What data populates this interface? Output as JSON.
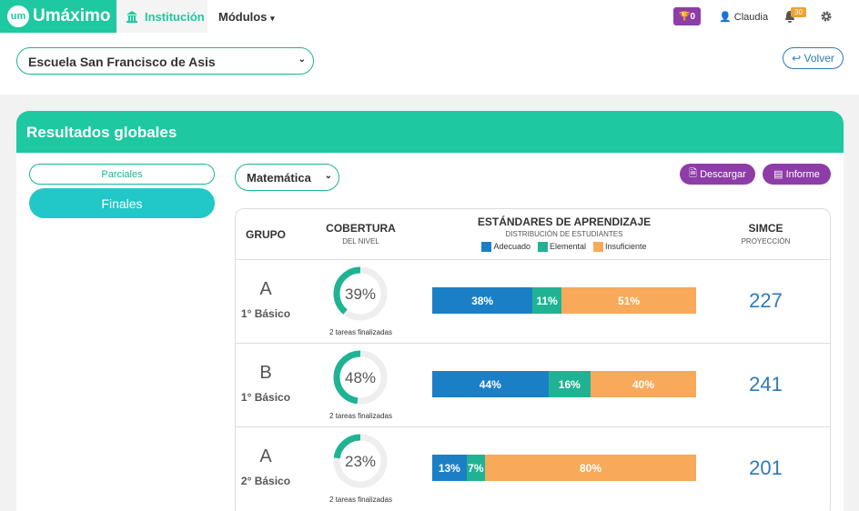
{
  "nav": {
    "brand": "Umáximo",
    "logo": "um",
    "tabs": [
      "Institución",
      "Módulos"
    ],
    "trophies": "0",
    "user": "Claudia",
    "notifications": "30"
  },
  "school_select": "Escuela San Francisco de Asis",
  "back_button": "Volver",
  "card": {
    "title": "Resultados globales",
    "tabs": [
      "Parciales",
      "Finales"
    ],
    "subject": "Matemática",
    "buttons": [
      "Descargar",
      "Informe"
    ]
  },
  "table": {
    "headers": {
      "group": "GRUPO",
      "coverage": "COBERTURA",
      "coverage_sub": "DEL NIVEL",
      "standards": "ESTÁNDARES DE APRENDIZAJE",
      "standards_sub": "DISTRIBUCIÓN DE ESTUDIANTES",
      "simce": "SIMCE",
      "simce_sub": "PROYECCIÓN"
    },
    "legend": [
      {
        "name": "Adecuado",
        "color": "#1b7fc6"
      },
      {
        "name": "Elemental",
        "color": "#1fb394"
      },
      {
        "name": "Insuficiente",
        "color": "#f8a95a"
      }
    ],
    "rows": [
      {
        "group": "A",
        "level": "1° Básico",
        "coverage": {
          "value": 39,
          "label": "39%"
        },
        "tasks": "2 tareas finalizadas",
        "segments": [
          {
            "value": 38,
            "label": "38%"
          },
          {
            "value": 11,
            "label": "11%"
          },
          {
            "value": 51,
            "label": "51%"
          }
        ],
        "simce": 227
      },
      {
        "group": "B",
        "level": "1° Básico",
        "coverage": {
          "value": 48,
          "label": "48%"
        },
        "tasks": "2 tareas finalizadas",
        "segments": [
          {
            "value": 44,
            "label": "44%"
          },
          {
            "value": 16,
            "label": "16%"
          },
          {
            "value": 40,
            "label": "40%"
          }
        ],
        "simce": 241
      },
      {
        "group": "A",
        "level": "2° Básico",
        "coverage": {
          "value": 23,
          "label": "23%"
        },
        "tasks": "2 tareas finalizadas",
        "segments": [
          {
            "value": 13,
            "label": "13%"
          },
          {
            "value": 7,
            "label": "7%"
          },
          {
            "value": 80,
            "label": "80%"
          }
        ],
        "simce": 201
      }
    ]
  }
}
